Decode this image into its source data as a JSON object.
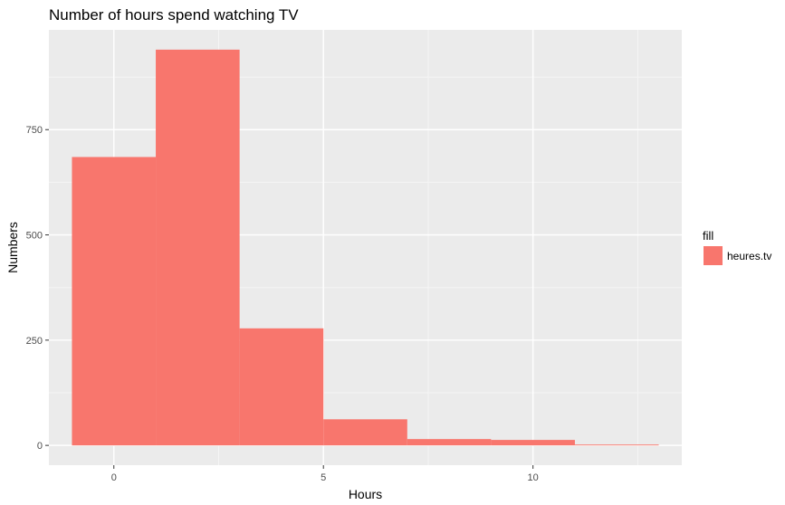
{
  "chart_data": {
    "type": "bar",
    "subtype": "histogram",
    "title": "Number of hours spend watching TV",
    "xlabel": "Hours",
    "ylabel": "Numbers",
    "xlim": [
      -1.55,
      13.55
    ],
    "ylim": [
      -47,
      987
    ],
    "x_ticks": [
      0,
      5,
      10
    ],
    "x_tick_labels": [
      "0",
      "5",
      "10"
    ],
    "y_ticks": [
      0,
      250,
      500,
      750
    ],
    "y_tick_labels": [
      "0",
      "250",
      "500",
      "750"
    ],
    "bins": [
      {
        "x_start": -1,
        "x_end": 1,
        "value": 685
      },
      {
        "x_start": 1,
        "x_end": 3,
        "value": 940
      },
      {
        "x_start": 3,
        "x_end": 5,
        "value": 278
      },
      {
        "x_start": 5,
        "x_end": 7,
        "value": 62
      },
      {
        "x_start": 7,
        "x_end": 9,
        "value": 15
      },
      {
        "x_start": 9,
        "x_end": 11,
        "value": 13
      },
      {
        "x_start": 11,
        "x_end": 13,
        "value": 2
      }
    ],
    "grid": true,
    "legend": {
      "title": "fill",
      "position": "right",
      "entries": [
        {
          "label": "heures.tv",
          "color": "#F8766D"
        }
      ]
    },
    "colors": {
      "bar": "#F8766D",
      "panel": "#EBEBEB",
      "grid_major": "#FFFFFF",
      "grid_minor": "#F5F5F5"
    }
  }
}
